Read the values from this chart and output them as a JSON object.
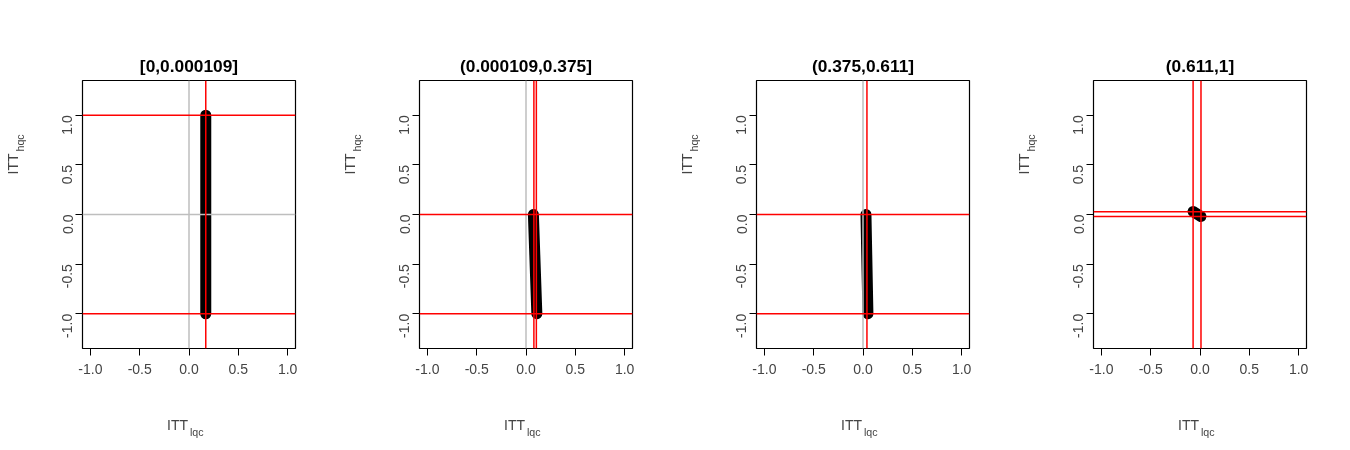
{
  "chart_data": [
    {
      "type": "line",
      "title": "[0,0.000109]",
      "xlabel": "ITT$_{lqc}$",
      "ylabel": "ITT$_{hqc}$",
      "grid": false,
      "line_style": "solid",
      "series": [
        {
          "color": "#000000",
          "x": [
            0.17,
            0.17
          ],
          "values": [
            1,
            -1
          ]
        }
      ],
      "xlim": [
        -1.08,
        1.08
      ],
      "ylim": [
        -1.35,
        1.35
      ],
      "xticks": [
        {
          "value": -1,
          "label": "-1.0"
        },
        {
          "value": -0.5,
          "label": "-0.5"
        },
        {
          "value": 0,
          "label": "0.0"
        },
        {
          "value": 0.5,
          "label": "0.5"
        },
        {
          "value": 1,
          "label": "1.0"
        }
      ],
      "yticks": [
        {
          "value": -1,
          "label": "-1.0"
        },
        {
          "value": -0.5,
          "label": "-0.5"
        },
        {
          "value": 0,
          "label": "0.0"
        },
        {
          "value": 0.5,
          "label": "0.5"
        },
        {
          "value": 1,
          "label": "1.0"
        }
      ],
      "ref_lines": [
        {
          "axis": "x",
          "value": 0,
          "color": "#bebebe"
        },
        {
          "axis": "y",
          "value": 0,
          "color": "#bebebe"
        },
        {
          "axis": "x",
          "value": 0.17,
          "color": "#ff0000"
        },
        {
          "axis": "y",
          "value": 1,
          "color": "#ff0000"
        },
        {
          "axis": "y",
          "value": -1,
          "color": "#ff0000"
        }
      ]
    },
    {
      "type": "line",
      "title": "(0.000109,0.375]",
      "xlabel": "ITT$_{lqc}$",
      "ylabel": "ITT$_{hqc}$",
      "grid": false,
      "line_style": "solid",
      "series": [
        {
          "color": "#000000",
          "x": [
            0.075,
            0.11
          ],
          "values": [
            0,
            -1
          ]
        }
      ],
      "xlim": [
        -1.08,
        1.08
      ],
      "ylim": [
        -1.35,
        1.35
      ],
      "xticks": [
        {
          "value": -1,
          "label": "-1.0"
        },
        {
          "value": -0.5,
          "label": "-0.5"
        },
        {
          "value": 0,
          "label": "0.0"
        },
        {
          "value": 0.5,
          "label": "0.5"
        },
        {
          "value": 1,
          "label": "1.0"
        }
      ],
      "yticks": [
        {
          "value": -1,
          "label": "-1.0"
        },
        {
          "value": -0.5,
          "label": "-0.5"
        },
        {
          "value": 0,
          "label": "0.0"
        },
        {
          "value": 0.5,
          "label": "0.5"
        },
        {
          "value": 1,
          "label": "1.0"
        }
      ],
      "ref_lines": [
        {
          "axis": "x",
          "value": 0,
          "color": "#bebebe"
        },
        {
          "axis": "x",
          "value": 0.08,
          "color": "#ff0000"
        },
        {
          "axis": "x",
          "value": 0.105,
          "color": "#ff0000"
        },
        {
          "axis": "y",
          "value": 0,
          "color": "#ff0000"
        },
        {
          "axis": "y",
          "value": -1,
          "color": "#ff0000"
        }
      ]
    },
    {
      "type": "line",
      "title": "(0.375,0.611]",
      "xlabel": "ITT$_{lqc}$",
      "ylabel": "ITT$_{hqc}$",
      "grid": false,
      "line_style": "solid",
      "series": [
        {
          "color": "#000000",
          "x": [
            0.03,
            0.05
          ],
          "values": [
            0,
            -1
          ]
        }
      ],
      "xlim": [
        -1.08,
        1.08
      ],
      "ylim": [
        -1.35,
        1.35
      ],
      "xticks": [
        {
          "value": -1,
          "label": "-1.0"
        },
        {
          "value": -0.5,
          "label": "-0.5"
        },
        {
          "value": 0,
          "label": "0.0"
        },
        {
          "value": 0.5,
          "label": "0.5"
        },
        {
          "value": 1,
          "label": "1.0"
        }
      ],
      "yticks": [
        {
          "value": -1,
          "label": "-1.0"
        },
        {
          "value": -0.5,
          "label": "-0.5"
        },
        {
          "value": 0,
          "label": "0.0"
        },
        {
          "value": 0.5,
          "label": "0.5"
        },
        {
          "value": 1,
          "label": "1.0"
        }
      ],
      "ref_lines": [
        {
          "axis": "x",
          "value": 0,
          "color": "#bebebe"
        },
        {
          "axis": "x",
          "value": 0.04,
          "color": "#ff0000"
        },
        {
          "axis": "y",
          "value": 0,
          "color": "#ff0000"
        },
        {
          "axis": "y",
          "value": -1,
          "color": "#ff0000"
        }
      ]
    },
    {
      "type": "line",
      "title": "(0.611,1]",
      "xlabel": "ITT$_{lqc}$",
      "ylabel": "ITT$_{hqc}$",
      "grid": false,
      "line_style": "solid",
      "series": [
        {
          "color": "#000000",
          "x": [
            -0.07,
            0.01
          ],
          "values": [
            0.03,
            -0.02
          ]
        }
      ],
      "xlim": [
        -1.08,
        1.08
      ],
      "ylim": [
        -1.35,
        1.35
      ],
      "xticks": [
        {
          "value": -1,
          "label": "-1.0"
        },
        {
          "value": -0.5,
          "label": "-0.5"
        },
        {
          "value": 0,
          "label": "0.0"
        },
        {
          "value": 0.5,
          "label": "0.5"
        },
        {
          "value": 1,
          "label": "1.0"
        }
      ],
      "yticks": [
        {
          "value": -1,
          "label": "-1.0"
        },
        {
          "value": -0.5,
          "label": "-0.5"
        },
        {
          "value": 0,
          "label": "0.0"
        },
        {
          "value": 0.5,
          "label": "0.5"
        },
        {
          "value": 1,
          "label": "1.0"
        }
      ],
      "ref_lines": [
        {
          "axis": "x",
          "value": -0.07,
          "color": "#ff0000"
        },
        {
          "axis": "x",
          "value": 0.01,
          "color": "#ff0000"
        },
        {
          "axis": "y",
          "value": 0.027,
          "color": "#ff0000"
        },
        {
          "axis": "y",
          "value": -0.02,
          "color": "#ff0000"
        }
      ]
    }
  ]
}
